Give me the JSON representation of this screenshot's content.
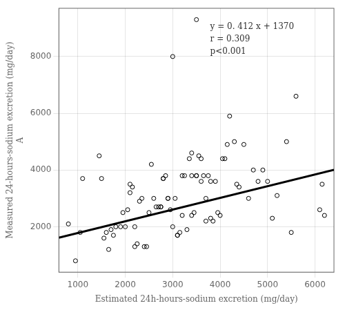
{
  "chart_data": {
    "type": "scatter",
    "xlabel": "Estimated 24h-hours-sodium excretion (mg/day)",
    "ylabel": [
      "Measured 24-hours-sodium excretion (mg/day)",
      "A"
    ],
    "annotations": [
      "y = 0. 412 x + 1370",
      "r = 0.309",
      "p<0.001"
    ],
    "series": [
      {
        "type": "scatter",
        "marker": "circle",
        "color": "#000000",
        "x": [
          800,
          950,
          1050,
          1100,
          1450,
          1500,
          1550,
          1600,
          1650,
          1700,
          1750,
          1800,
          1900,
          1950,
          2000,
          2050,
          2100,
          2100,
          2150,
          2200,
          2200,
          2250,
          2300,
          2350,
          2400,
          2450,
          2500,
          2550,
          2600,
          2650,
          2700,
          2750,
          2750,
          2800,
          2800,
          2850,
          2900,
          2900,
          2950,
          3000,
          3000,
          3050,
          3100,
          3100,
          3150,
          3200,
          3200,
          3250,
          3300,
          3350,
          3400,
          3400,
          3400,
          3450,
          3500,
          3500,
          3500,
          3550,
          3600,
          3600,
          3650,
          3700,
          3700,
          3750,
          3800,
          3800,
          3850,
          3900,
          3950,
          4000,
          4050,
          4100,
          4150,
          4200,
          4300,
          4350,
          4400,
          4500,
          4600,
          4700,
          4800,
          4900,
          5000,
          5100,
          5200,
          5400,
          5500,
          5600,
          6100,
          6150,
          6200
        ],
        "values": [
          2100,
          800,
          1800,
          3700,
          4500,
          3700,
          1600,
          1800,
          1200,
          1900,
          1700,
          2000,
          2000,
          2500,
          2000,
          2600,
          3500,
          3200,
          3400,
          2000,
          1300,
          1400,
          2900,
          3000,
          1300,
          1300,
          2500,
          4200,
          3000,
          2700,
          2700,
          2700,
          2700,
          3700,
          3700,
          3800,
          3000,
          3000,
          2600,
          8000,
          2000,
          3000,
          1700,
          1700,
          1800,
          2400,
          3800,
          3800,
          1900,
          4400,
          3800,
          4600,
          2400,
          2500,
          3800,
          3800,
          9300,
          4500,
          3600,
          4400,
          3800,
          2200,
          3000,
          3800,
          3600,
          2300,
          2200,
          3600,
          2500,
          2400,
          4400,
          4400,
          4900,
          5900,
          5000,
          3500,
          3400,
          4900,
          3000,
          4000,
          3600,
          4000,
          3600,
          2300,
          3100,
          5000,
          1800,
          6600,
          2600,
          3500,
          2400
        ]
      },
      {
        "type": "line",
        "line_style": "solid",
        "color": "#000000",
        "x": [
          600,
          6400
        ],
        "values": [
          1617.2,
          4006.8
        ]
      }
    ],
    "xlim": [
      600,
      6400
    ],
    "ylim": [
      400,
      9700
    ],
    "xticks": [
      1000,
      2000,
      3000,
      4000,
      5000,
      6000
    ],
    "yticks": [
      2000,
      4000,
      6000,
      8000
    ],
    "grid": true
  }
}
